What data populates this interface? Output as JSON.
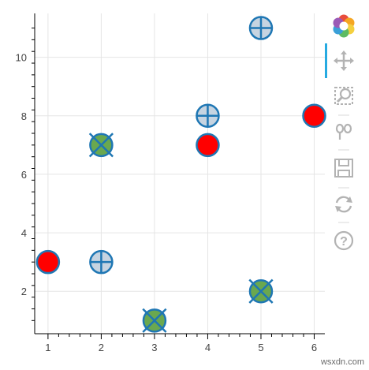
{
  "chart_data": {
    "type": "scatter",
    "title": "",
    "xlabel": "",
    "ylabel": "",
    "xlim": [
      0.75,
      6.2
    ],
    "ylim": [
      0.55,
      11.5
    ],
    "x_ticks": [
      1,
      2,
      3,
      4,
      5,
      6
    ],
    "y_ticks": [
      2,
      4,
      6,
      8,
      10
    ],
    "grid": true,
    "series": [
      {
        "marker": "circle",
        "fill_color": "#ff0000",
        "line_color": "#1f77b4",
        "points": [
          {
            "x": 1,
            "y": 3
          },
          {
            "x": 4,
            "y": 7
          },
          {
            "x": 6,
            "y": 8
          }
        ]
      },
      {
        "marker": "circle_cross",
        "fill_color": "#c6d4e1",
        "line_color": "#1f77b4",
        "points": [
          {
            "x": 2,
            "y": 3
          },
          {
            "x": 4,
            "y": 8
          },
          {
            "x": 5,
            "y": 11
          }
        ]
      },
      {
        "marker": "circle_x",
        "fill_color": "#6aa84f",
        "line_color": "#1f77b4",
        "points": [
          {
            "x": 2,
            "y": 7
          },
          {
            "x": 3,
            "y": 1
          },
          {
            "x": 5,
            "y": 2
          }
        ]
      }
    ]
  },
  "toolbar": {
    "tools": [
      "bokeh-logo-icon",
      "pan-icon",
      "box-zoom-icon",
      "wheel-zoom-icon",
      "save-icon",
      "reset-icon",
      "help-icon"
    ],
    "active_tool": "pan-icon",
    "colors": {
      "icon": "#b3b3b3",
      "active": "#26aae1"
    }
  },
  "watermark": "wsxdn.com"
}
